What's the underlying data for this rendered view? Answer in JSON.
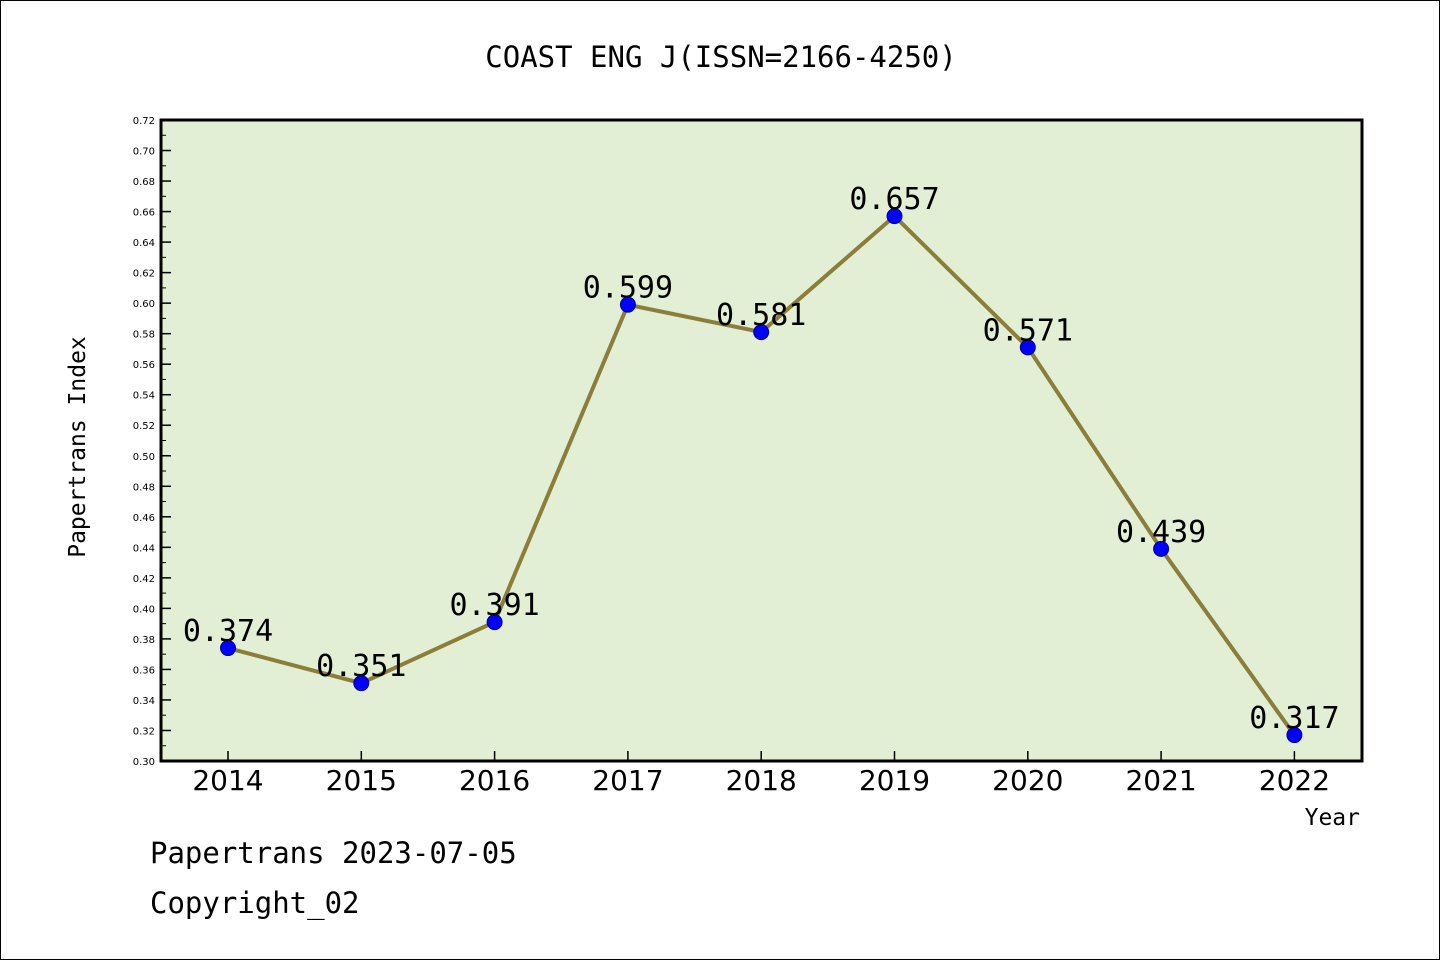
{
  "chart_data": {
    "type": "line",
    "title": "COAST ENG J(ISSN=2166-4250)",
    "xlabel": "Year",
    "ylabel": "Papertrans Index",
    "categories": [
      "2014",
      "2015",
      "2016",
      "2017",
      "2018",
      "2019",
      "2020",
      "2021",
      "2022"
    ],
    "series": [
      {
        "values": [
          0.374,
          0.351,
          0.391,
          0.599,
          0.581,
          0.657,
          0.571,
          0.439,
          0.317
        ],
        "data_labels": [
          "0.374",
          "0.351",
          "0.391",
          "0.599",
          "0.581",
          "0.657",
          "0.571",
          "0.439",
          "0.317"
        ]
      }
    ],
    "ylim": [
      0.3,
      0.72
    ],
    "yticks": [
      "0.30",
      "0.32",
      "0.34",
      "0.36",
      "0.38",
      "0.40",
      "0.42",
      "0.44",
      "0.46",
      "0.48",
      "0.50",
      "0.52",
      "0.54",
      "0.56",
      "0.58",
      "0.60",
      "0.62",
      "0.64",
      "0.66",
      "0.68",
      "0.70",
      "0.72"
    ],
    "grid": false,
    "legend": "none",
    "colors": {
      "plot_background": "#e2efd4",
      "line": "#8b7d3a",
      "marker": "#0000ff",
      "axis": "#000000"
    }
  },
  "footer": {
    "line1": "Papertrans 2023-07-05",
    "line2": "Copyright_02"
  }
}
